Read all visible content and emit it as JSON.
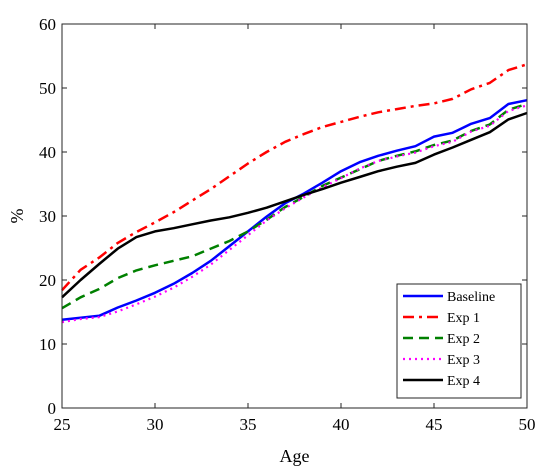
{
  "chart_data": {
    "type": "line",
    "title": "",
    "xlabel": "Age",
    "ylabel": "%",
    "xlim": [
      25,
      50
    ],
    "ylim": [
      0,
      60
    ],
    "xticks": [
      "25",
      "30",
      "35",
      "40",
      "45",
      "50"
    ],
    "yticks": [
      "0",
      "10",
      "20",
      "30",
      "40",
      "50",
      "60"
    ],
    "grid": false,
    "legend_position": "bottom-right",
    "x": [
      25,
      26,
      27,
      28,
      29,
      30,
      31,
      32,
      33,
      34,
      35,
      36,
      37,
      38,
      39,
      40,
      41,
      42,
      43,
      44,
      45,
      46,
      47,
      48,
      49,
      50
    ],
    "series": [
      {
        "name": "Baseline",
        "color": "#0000ff",
        "dash": "solid",
        "values": [
          13.8,
          14.1,
          14.4,
          15.7,
          16.8,
          18.0,
          19.4,
          21.1,
          23.0,
          25.3,
          27.6,
          29.9,
          32.0,
          33.5,
          35.2,
          37.0,
          38.4,
          39.4,
          40.2,
          40.9,
          42.4,
          43.0,
          44.4,
          45.3,
          47.5,
          48.1
        ]
      },
      {
        "name": "Exp 1",
        "color": "#ff0000",
        "dash": "dashdot",
        "values": [
          18.4,
          21.6,
          23.5,
          25.8,
          27.5,
          29.0,
          30.6,
          32.4,
          34.2,
          36.2,
          38.2,
          40.0,
          41.6,
          42.8,
          43.9,
          44.7,
          45.5,
          46.2,
          46.7,
          47.2,
          47.6,
          48.3,
          49.8,
          50.8,
          52.8,
          53.7
        ]
      },
      {
        "name": "Exp 2",
        "color": "#008000",
        "dash": "dashed",
        "values": [
          15.6,
          17.3,
          18.6,
          20.3,
          21.5,
          22.3,
          23.0,
          23.7,
          24.9,
          26.1,
          27.6,
          29.4,
          31.4,
          33.0,
          34.7,
          36.0,
          37.3,
          38.6,
          39.4,
          40.1,
          41.1,
          41.8,
          43.3,
          44.3,
          46.6,
          47.5
        ]
      },
      {
        "name": "Exp 3",
        "color": "#ff00ff",
        "dash": "dotted",
        "values": [
          13.4,
          13.9,
          14.2,
          15.1,
          16.2,
          17.4,
          18.8,
          20.5,
          22.4,
          24.7,
          27.0,
          29.3,
          31.2,
          32.9,
          34.5,
          35.9,
          37.4,
          38.6,
          39.3,
          39.9,
          40.9,
          41.6,
          43.2,
          44.1,
          46.4,
          47.3
        ]
      },
      {
        "name": "Exp 4",
        "color": "#000000",
        "dash": "solid",
        "values": [
          17.3,
          20.0,
          22.5,
          24.9,
          26.7,
          27.6,
          28.1,
          28.7,
          29.3,
          29.8,
          30.5,
          31.3,
          32.3,
          33.3,
          34.2,
          35.2,
          36.1,
          37.0,
          37.7,
          38.3,
          39.6,
          40.7,
          41.9,
          43.1,
          45.1,
          46.1
        ]
      }
    ]
  }
}
